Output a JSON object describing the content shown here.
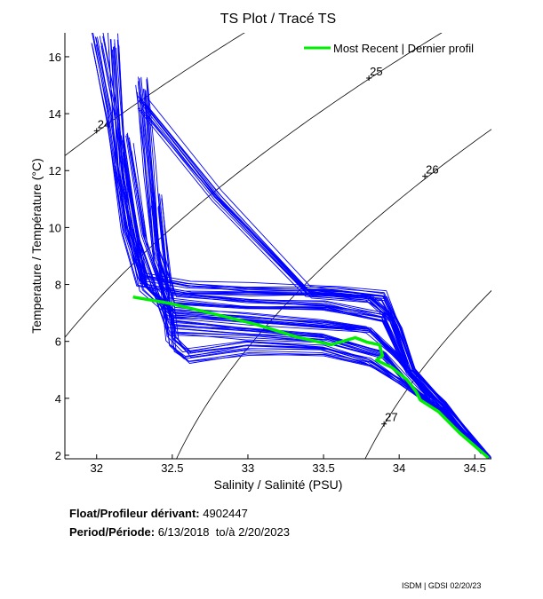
{
  "chart_data": {
    "type": "line",
    "title": "TS Plot / Tracé TS",
    "xlabel": "Salinity / Salinité (PSU)",
    "ylabel": "Temperature / Température (°C)",
    "xlim": [
      31.79,
      34.61
    ],
    "ylim": [
      1.875,
      16.84
    ],
    "xticks": [
      "32",
      "32.5",
      "33",
      "33.5",
      "34",
      "34.5"
    ],
    "yticks": [
      "2",
      "4",
      "6",
      "8",
      "10",
      "12",
      "14",
      "16"
    ],
    "grid": false,
    "legend": {
      "placement": "top-right",
      "entries": [
        "Most Recent | Dernier profil"
      ]
    },
    "density_contours": [
      {
        "label": "24",
        "level": 24,
        "label_at": [
          32.0,
          13.4
        ]
      },
      {
        "label": "25",
        "level": 25,
        "label_at": [
          33.8,
          15.25
        ]
      },
      {
        "label": "26",
        "level": 26,
        "label_at": [
          34.17,
          11.8
        ]
      },
      {
        "label": "27",
        "level": 27,
        "label_at": [
          33.9,
          3.1
        ]
      }
    ],
    "series": [
      {
        "name": "Most Recent | Dernier profil",
        "color": "#00ee00",
        "points": [
          [
            32.24,
            7.56
          ],
          [
            32.48,
            7.34
          ],
          [
            32.77,
            6.97
          ],
          [
            33.06,
            6.59
          ],
          [
            33.32,
            6.16
          ],
          [
            33.55,
            5.88
          ],
          [
            33.71,
            6.13
          ],
          [
            33.79,
            5.97
          ],
          [
            33.87,
            5.88
          ],
          [
            33.89,
            5.5
          ],
          [
            33.85,
            5.34
          ],
          [
            33.95,
            5.09
          ],
          [
            34.05,
            4.66
          ],
          [
            34.11,
            4.25
          ],
          [
            34.14,
            3.94
          ],
          [
            34.26,
            3.53
          ],
          [
            34.4,
            2.78
          ],
          [
            34.59,
            1.91
          ]
        ]
      }
    ],
    "historical_profiles": {
      "color": "#0000ff",
      "profiles": [
        [
          [
            32.0,
            16.7
          ],
          [
            32.1,
            14
          ],
          [
            32.2,
            10
          ],
          [
            32.3,
            8.2
          ],
          [
            32.6,
            7.9
          ],
          [
            33.0,
            7.8
          ],
          [
            33.6,
            7.8
          ],
          [
            33.9,
            7.6
          ],
          [
            34.0,
            6.5
          ],
          [
            34.1,
            5.0
          ],
          [
            34.3,
            3.8
          ],
          [
            34.6,
            1.9
          ]
        ],
        [
          [
            32.3,
            15.0
          ],
          [
            32.35,
            12
          ],
          [
            32.4,
            9
          ],
          [
            32.5,
            7.5
          ],
          [
            33.0,
            7.3
          ],
          [
            33.5,
            7.2
          ],
          [
            33.9,
            6.8
          ],
          [
            34.05,
            5.0
          ],
          [
            34.3,
            3.6
          ],
          [
            34.55,
            2.1
          ]
        ],
        [
          [
            32.2,
            13.0
          ],
          [
            32.3,
            9.5
          ],
          [
            32.5,
            6.5
          ],
          [
            33.0,
            6.3
          ],
          [
            33.5,
            6.1
          ],
          [
            33.9,
            5.5
          ],
          [
            34.1,
            4.3
          ],
          [
            34.4,
            3.0
          ]
        ],
        [
          [
            32.4,
            11.0
          ],
          [
            32.5,
            6.0
          ],
          [
            32.6,
            5.5
          ],
          [
            33.0,
            5.8
          ],
          [
            33.5,
            5.7
          ],
          [
            33.8,
            5.3
          ],
          [
            34.0,
            4.6
          ],
          [
            34.3,
            3.5
          ],
          [
            34.5,
            2.4
          ]
        ],
        [
          [
            32.1,
            16.5
          ],
          [
            32.15,
            12
          ],
          [
            32.3,
            8.0
          ],
          [
            32.5,
            7.0
          ],
          [
            33.0,
            6.8
          ],
          [
            33.5,
            6.6
          ],
          [
            33.8,
            6.4
          ],
          [
            34.0,
            5.4
          ],
          [
            34.2,
            4.0
          ]
        ],
        [
          [
            32.3,
            14.3
          ],
          [
            32.8,
            11.0
          ],
          [
            33.4,
            7.7
          ],
          [
            33.8,
            7.5
          ],
          [
            33.95,
            6.8
          ],
          [
            34.05,
            5.2
          ]
        ]
      ]
    }
  },
  "info": {
    "float_label": "Float/Profileur dérivant:",
    "float_id": "4902447",
    "period_label": "Period/Période:",
    "period_start": "6/13/2018",
    "period_to": "to/à",
    "period_end": "2/20/2023"
  },
  "footer": "ISDM | GDSI  02/20/23"
}
